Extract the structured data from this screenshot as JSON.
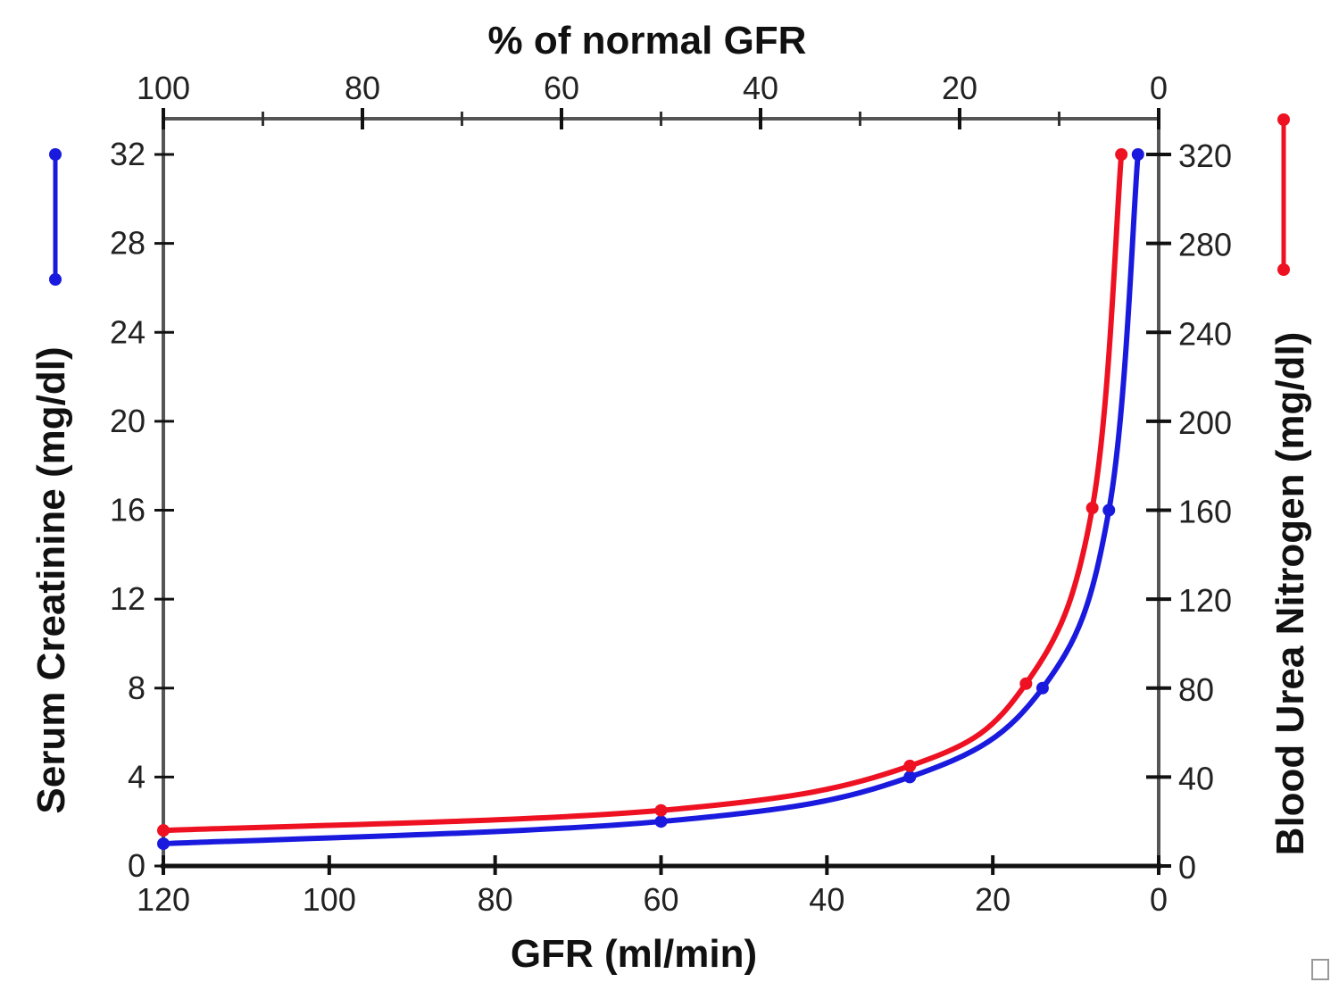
{
  "chart_data": {
    "type": "line",
    "title": "% of normal GFR",
    "xlabel": "GFR (ml/min)",
    "ylabel": "Serum Creatinine (mg/dl)",
    "y2label": "Blood Urea Nitrogen (mg/dl)",
    "xlim": [
      120,
      0
    ],
    "ylim": [
      0,
      32
    ],
    "y2lim": [
      0,
      320
    ],
    "x2lim": [
      100,
      0
    ],
    "x_ticks": [
      "120",
      "100",
      "80",
      "60",
      "40",
      "20",
      "0"
    ],
    "y_ticks": [
      "0",
      "4",
      "8",
      "12",
      "16",
      "20",
      "24",
      "28",
      "32"
    ],
    "y2_ticks": [
      "0",
      "40",
      "80",
      "120",
      "160",
      "200",
      "240",
      "280",
      "320"
    ],
    "x2_ticks": [
      "100",
      "80",
      "60",
      "40",
      "20",
      "0"
    ],
    "grid": false,
    "series": [
      {
        "name": "Serum Creatinine",
        "axis": "left",
        "color": "#1a1adf",
        "x": [
          120,
          60,
          30,
          14,
          6,
          2.5
        ],
        "y": [
          1,
          2,
          4,
          8,
          16,
          32
        ]
      },
      {
        "name": "Blood Urea Nitrogen",
        "axis": "right",
        "color": "#ee1122",
        "x": [
          120,
          60,
          30,
          16,
          8,
          4.5
        ],
        "y": [
          16,
          25,
          45,
          82,
          161,
          320
        ]
      }
    ]
  }
}
